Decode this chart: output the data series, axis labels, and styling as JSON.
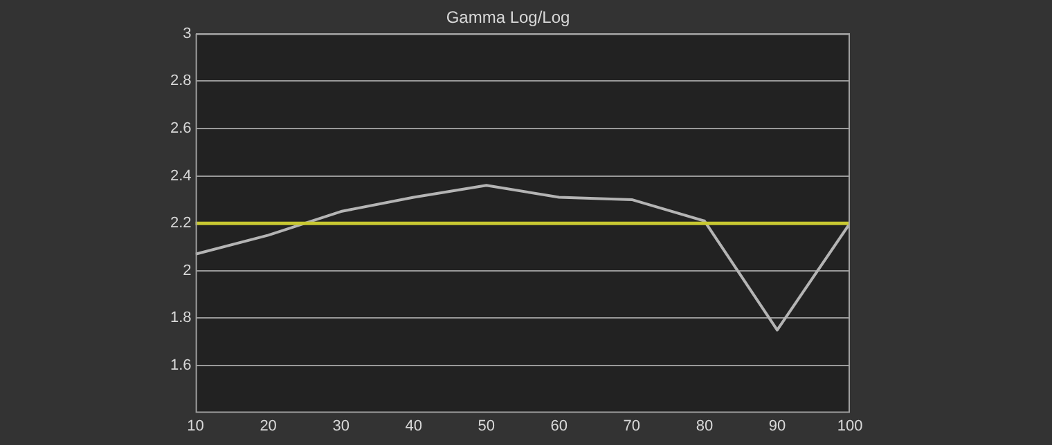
{
  "chart_data": {
    "type": "line",
    "title": "Gamma Log/Log",
    "x": [
      10,
      20,
      30,
      40,
      50,
      60,
      70,
      80,
      90,
      100
    ],
    "series": [
      {
        "color": "#b4b4b4",
        "values": [
          2.07,
          2.15,
          2.25,
          2.31,
          2.36,
          2.31,
          2.3,
          2.21,
          1.75,
          2.2
        ]
      }
    ],
    "xlim": [
      10,
      100
    ],
    "xticks": [
      10,
      20,
      30,
      40,
      50,
      60,
      70,
      80,
      90,
      100
    ],
    "ylim": [
      1.4,
      3
    ],
    "yticks": [
      1.6,
      1.8,
      2,
      2.2,
      2.4,
      2.6,
      2.8,
      3
    ],
    "ref_lines": [
      {
        "axis": "y",
        "value": 2.2,
        "color": "#c8c832"
      }
    ],
    "grid": "y",
    "legend": false,
    "marker": "none"
  }
}
